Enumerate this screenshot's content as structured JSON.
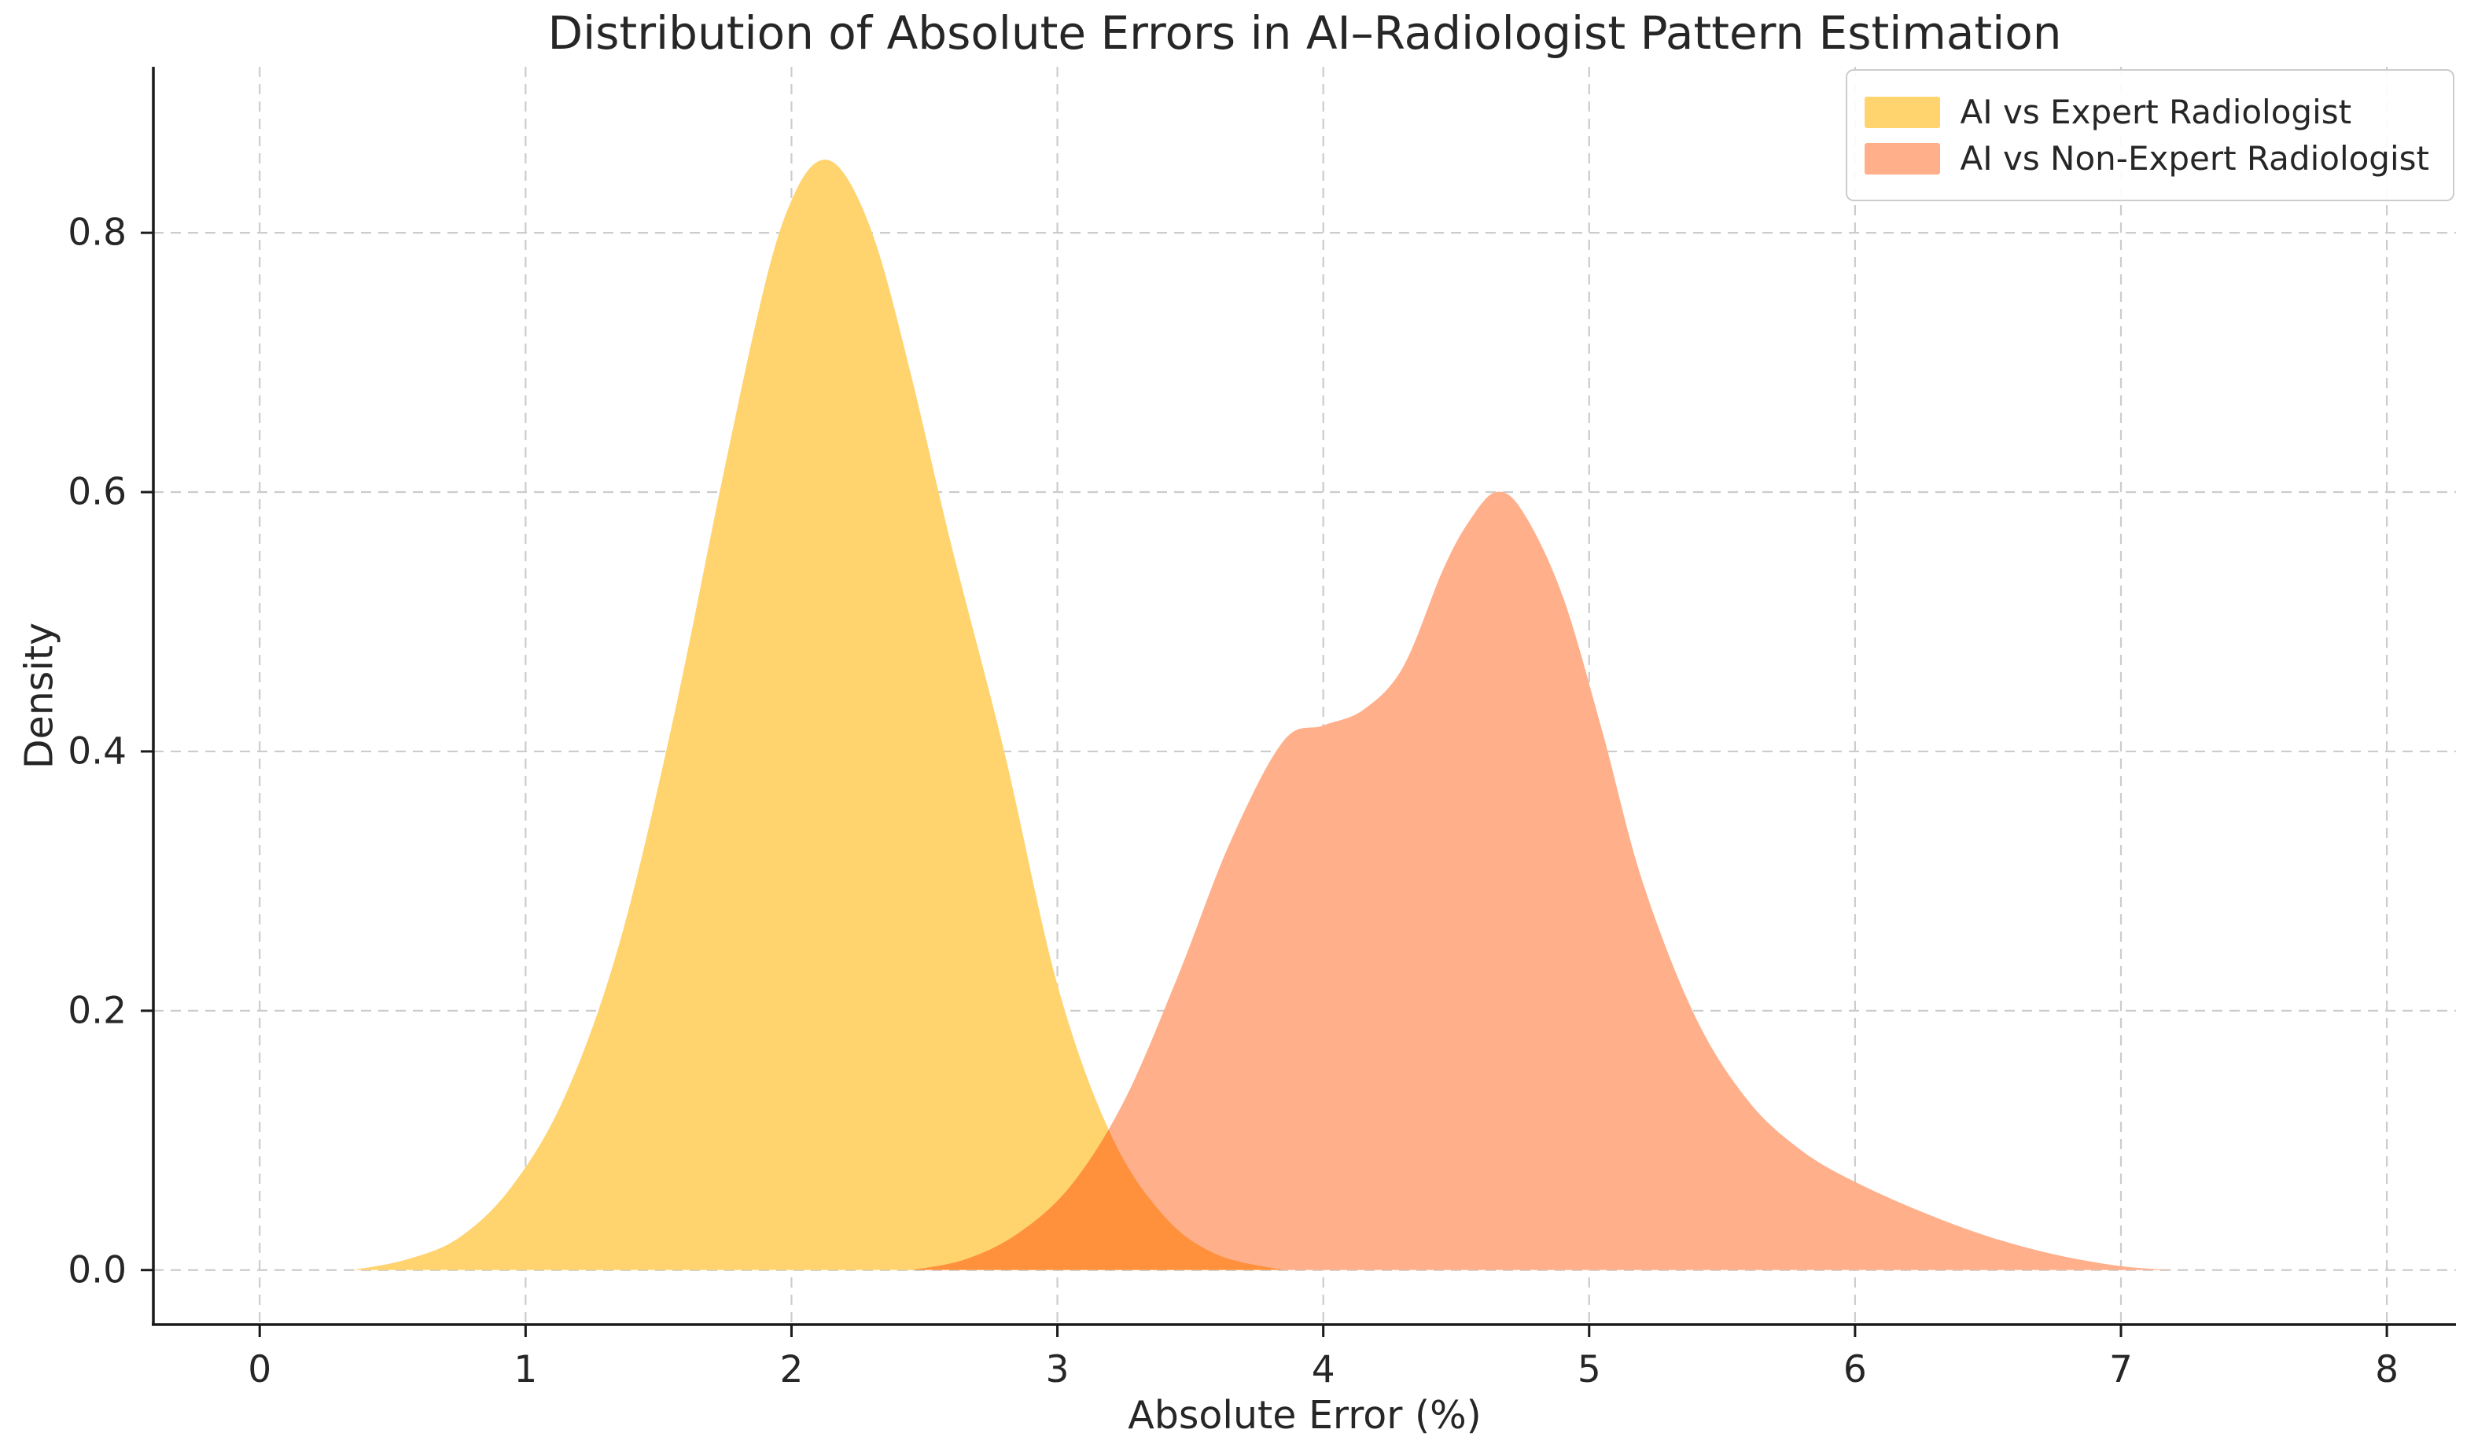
{
  "page": {
    "background": "#ffffff"
  },
  "chart_data": {
    "type": "area",
    "subtype": "kde-density",
    "title": "Distribution of Absolute Errors in AI–Radiologist Pattern Estimation",
    "xlabel": "Absolute Error (%)",
    "ylabel": "Density",
    "xlim": [
      -0.4,
      8.26
    ],
    "ylim": [
      -0.042,
      0.928
    ],
    "x_ticks": [
      0,
      1,
      2,
      3,
      4,
      5,
      6,
      7,
      8
    ],
    "y_ticks": [
      0.0,
      0.2,
      0.4,
      0.6,
      0.8
    ],
    "grid": {
      "visible": true,
      "style": "dashed",
      "color": "#cccccc"
    },
    "legend": {
      "position": "upper right",
      "entries": [
        {
          "label": "AI vs Expert Radiologist",
          "color": "#FFD36E"
        },
        {
          "label": "AI vs Non-Expert Radiologist",
          "color": "#FFAF8A"
        }
      ]
    },
    "series": [
      {
        "name": "AI vs Expert Radiologist",
        "color": "#FFD36E",
        "peak": {
          "x": 2.1,
          "density": 0.855
        },
        "x": [
          0.35,
          0.55,
          0.75,
          0.95,
          1.15,
          1.35,
          1.55,
          1.75,
          1.9,
          2.0,
          2.1,
          2.2,
          2.32,
          2.45,
          2.6,
          2.8,
          3.0,
          3.2,
          3.4,
          3.6,
          3.85
        ],
        "y": [
          0.0,
          0.008,
          0.025,
          0.065,
          0.135,
          0.25,
          0.42,
          0.62,
          0.76,
          0.825,
          0.855,
          0.845,
          0.79,
          0.69,
          0.56,
          0.4,
          0.22,
          0.105,
          0.042,
          0.012,
          0.0
        ]
      },
      {
        "name": "AI vs Non-Expert Radiologist",
        "color": "#FFAF8A",
        "peak": {
          "x": 4.65,
          "density": 0.6
        },
        "shoulder": {
          "x": 4.0,
          "density": 0.42
        },
        "x": [
          2.45,
          2.65,
          2.85,
          3.05,
          3.25,
          3.45,
          3.65,
          3.85,
          4.0,
          4.15,
          4.3,
          4.45,
          4.55,
          4.65,
          4.75,
          4.9,
          5.05,
          5.2,
          5.4,
          5.6,
          5.8,
          6.0,
          6.25,
          6.5,
          6.75,
          7.0,
          7.2
        ],
        "y": [
          0.0,
          0.008,
          0.028,
          0.065,
          0.13,
          0.225,
          0.33,
          0.408,
          0.42,
          0.432,
          0.465,
          0.54,
          0.578,
          0.6,
          0.585,
          0.52,
          0.415,
          0.3,
          0.195,
          0.13,
          0.092,
          0.068,
          0.045,
          0.026,
          0.012,
          0.003,
          0.0
        ]
      }
    ],
    "overlap_color": "#FB9638",
    "axis_style": {
      "spine_color": "#1a1a1a",
      "tick_color": "#1a1a1a",
      "text_color": "#262626"
    }
  }
}
